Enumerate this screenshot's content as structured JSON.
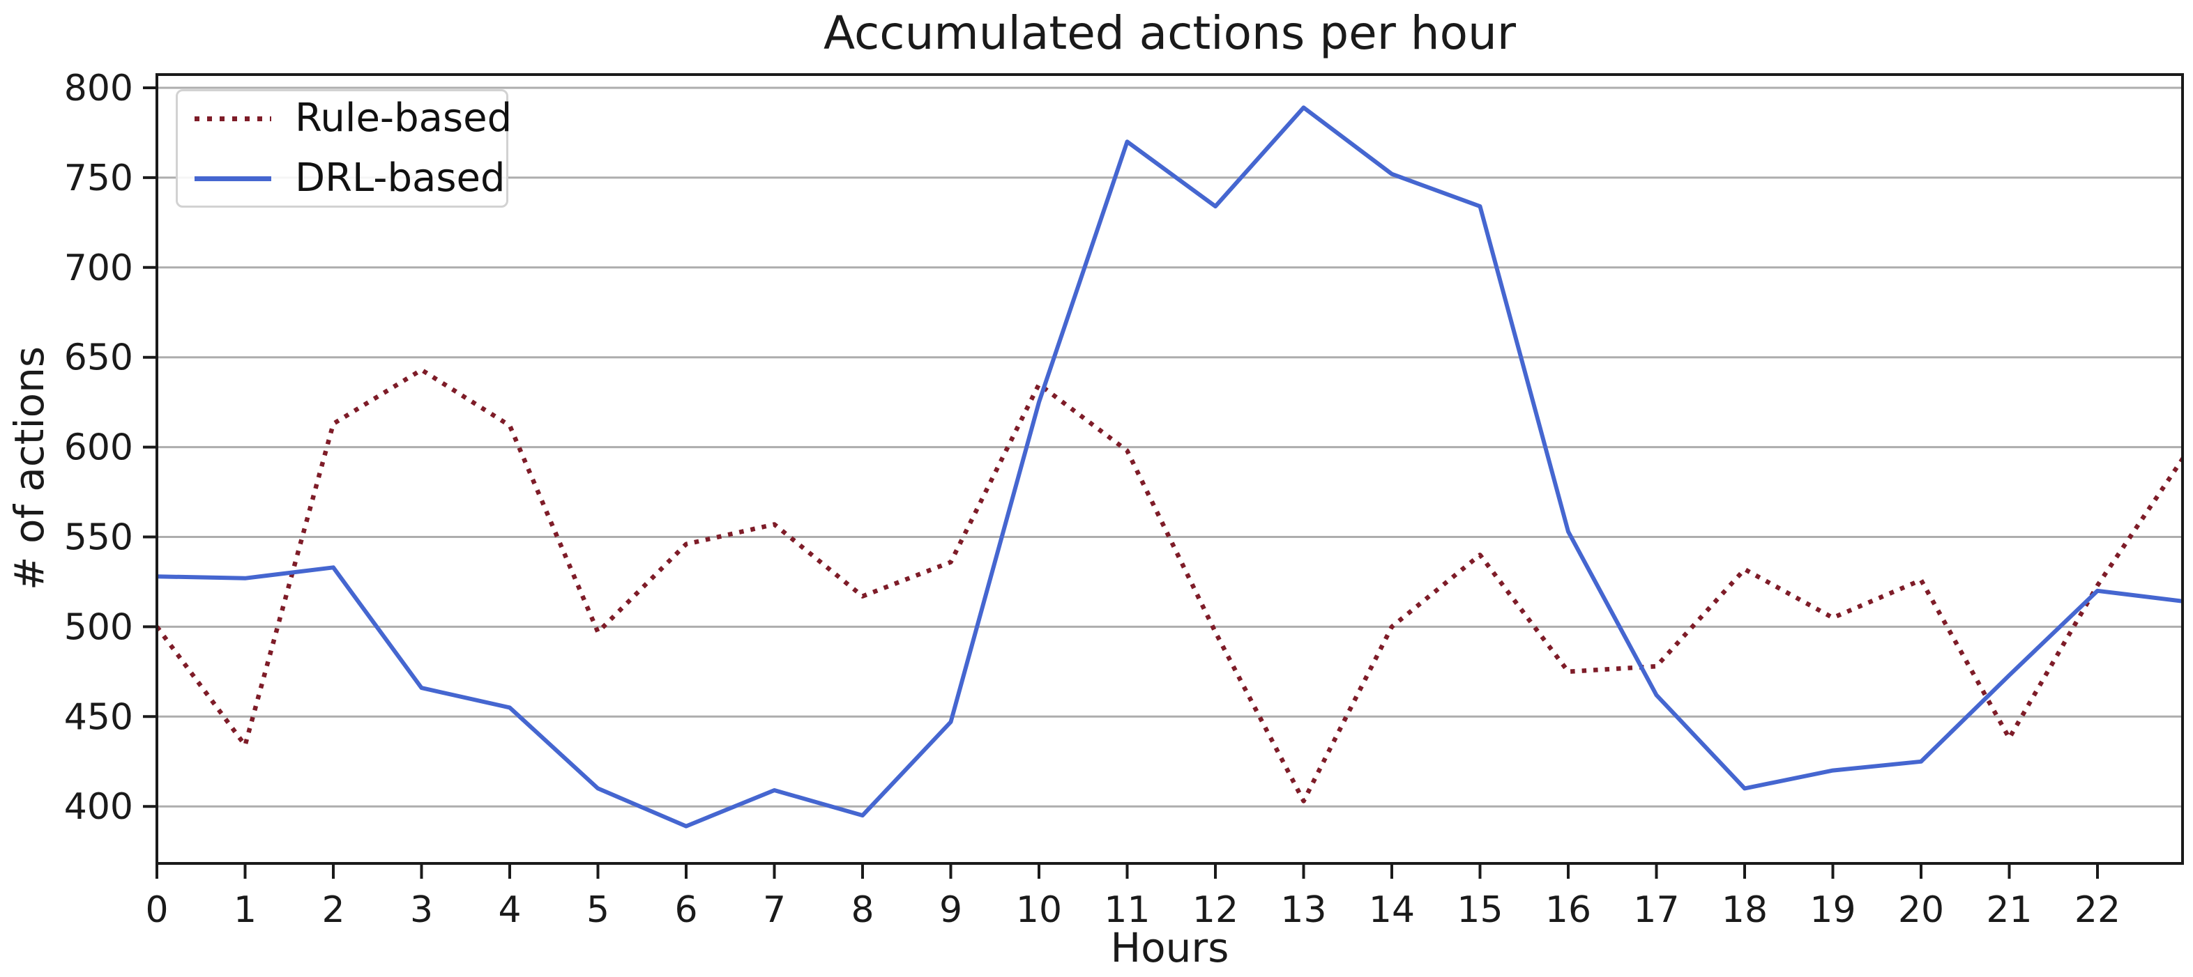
{
  "chart_data": {
    "type": "line",
    "title": "Accumulated actions per hour",
    "xlabel": "Hours",
    "ylabel": "# of actions",
    "x": [
      0,
      1,
      2,
      3,
      4,
      5,
      6,
      7,
      8,
      9,
      10,
      11,
      12,
      13,
      14,
      15,
      16,
      17,
      18,
      19,
      20,
      21,
      22,
      23
    ],
    "series": [
      {
        "name": "Rule-based",
        "color": "#7e1c28",
        "line_style": "dotted",
        "values": [
          500,
          434,
          613,
          643,
          612,
          497,
          546,
          557,
          517,
          536,
          635,
          598,
          497,
          403,
          500,
          540,
          475,
          478,
          532,
          505,
          526,
          438,
          523,
          596
        ]
      },
      {
        "name": "DRL-based",
        "color": "#4566d0",
        "line_style": "solid",
        "values": [
          528,
          527,
          533,
          466,
          455,
          410,
          389,
          409,
          395,
          447,
          625,
          770,
          734,
          789,
          752,
          734,
          553,
          462,
          410,
          420,
          425,
          473,
          520,
          514
        ]
      }
    ],
    "xticks": [
      0,
      1,
      2,
      3,
      4,
      5,
      6,
      7,
      8,
      9,
      10,
      11,
      12,
      13,
      14,
      15,
      16,
      17,
      18,
      19,
      20,
      21,
      22
    ],
    "yticks": [
      400,
      450,
      500,
      550,
      600,
      650,
      700,
      750,
      800
    ],
    "xlim": [
      0,
      22.96
    ],
    "ylim": [
      369,
      807
    ],
    "grid": "horizontal",
    "legend_position": "upper-left",
    "colors": {
      "grid": "#adadad",
      "axis": "#1a1a1a",
      "tick_label": "#1a1a1a",
      "background": "#ffffff"
    }
  }
}
